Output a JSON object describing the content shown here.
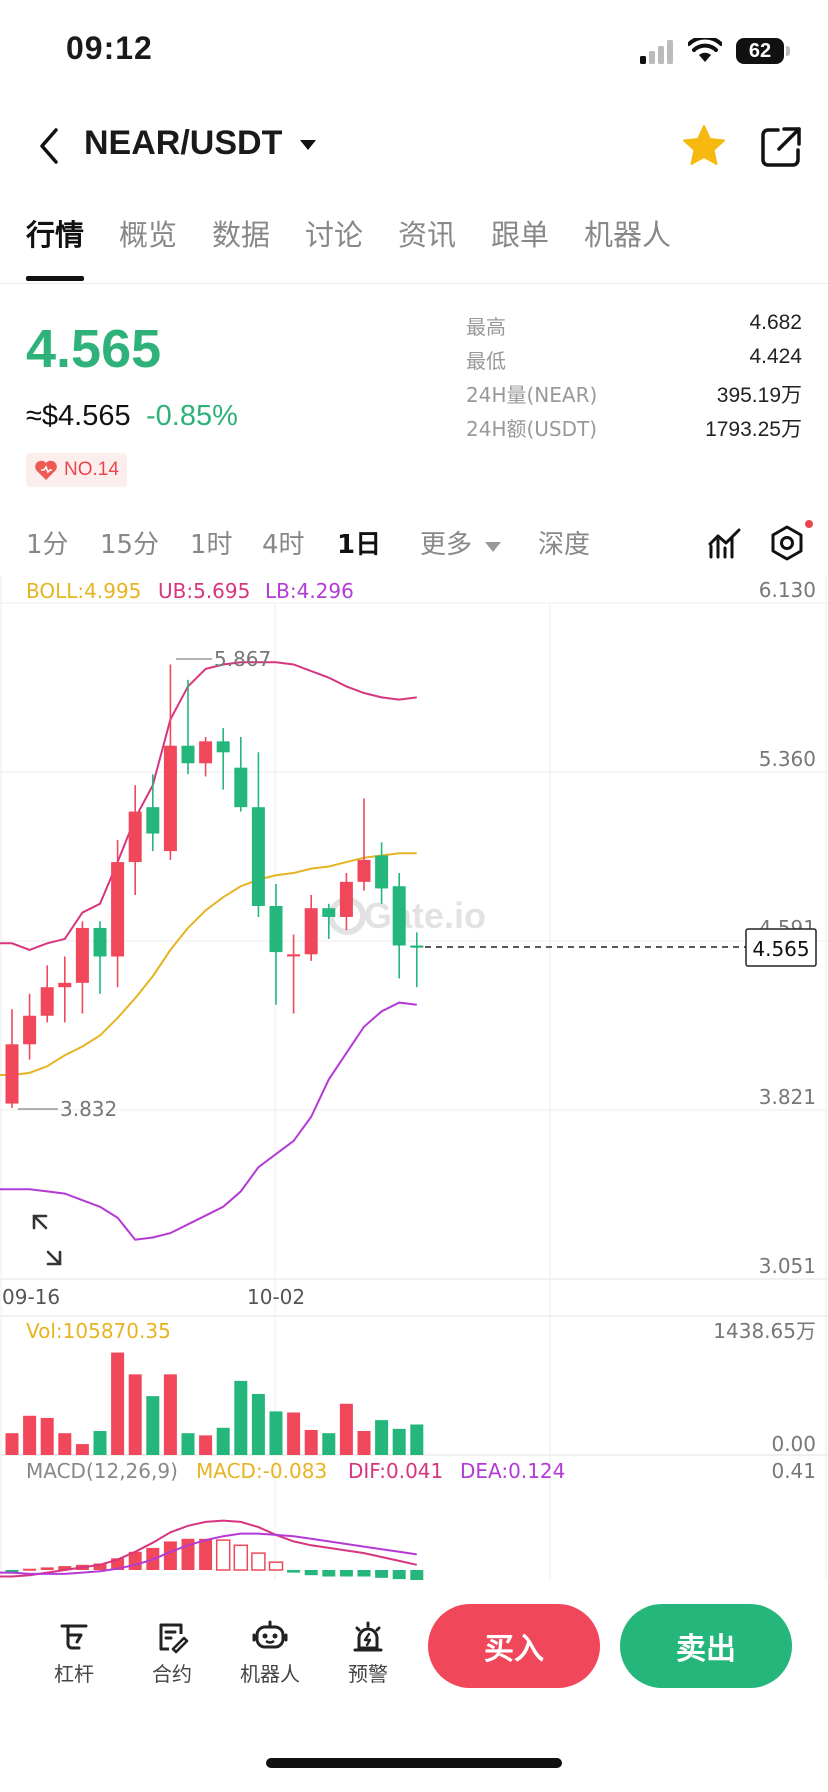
{
  "status_bar": {
    "time": "09:12",
    "battery": "62"
  },
  "header": {
    "pair": "NEAR/USDT"
  },
  "tabs": [
    "行情",
    "概览",
    "数据",
    "讨论",
    "资讯",
    "跟单",
    "机器人"
  ],
  "price": {
    "last": "4.565",
    "usd": "≈$4.565",
    "change": "-0.85%",
    "rank": "NO.14"
  },
  "stats": [
    {
      "label": "最高",
      "value": "4.682"
    },
    {
      "label": "最低",
      "value": "4.424"
    },
    {
      "label": "24H量(NEAR)",
      "value": "395.19万"
    },
    {
      "label": "24H额(USDT)",
      "value": "1793.25万"
    }
  ],
  "intervals": [
    "1分",
    "15分",
    "1时",
    "4时",
    "1日",
    "更多",
    "深度"
  ],
  "colors": {
    "up": "#f0485a",
    "down": "#25b67b",
    "boll_mid": "#e6b422",
    "boll_up": "#d6357f",
    "boll_low": "#b43ad6"
  },
  "chart_data": {
    "type": "candlestick",
    "watermark": "Gate.io",
    "x_ticks": [
      "09-16",
      "10-02"
    ],
    "price_axis": {
      "ticks": [
        "6.130",
        "5.360",
        "4.591",
        "3.821",
        "3.051"
      ],
      "range": [
        3.051,
        6.13
      ]
    },
    "boll_legend": {
      "boll": "BOLL:4.995",
      "ub": "UB:5.695",
      "lb": "LB:4.296"
    },
    "high_label": "5.867",
    "low_label": "3.832",
    "current_price": "4.565",
    "candles": [
      {
        "o": 3.85,
        "h": 4.28,
        "l": 3.83,
        "c": 4.12
      },
      {
        "o": 4.12,
        "h": 4.35,
        "l": 4.05,
        "c": 4.25
      },
      {
        "o": 4.25,
        "h": 4.48,
        "l": 4.22,
        "c": 4.38
      },
      {
        "o": 4.38,
        "h": 4.52,
        "l": 4.22,
        "c": 4.4
      },
      {
        "o": 4.4,
        "h": 4.68,
        "l": 4.26,
        "c": 4.65
      },
      {
        "o": 4.65,
        "h": 4.68,
        "l": 4.35,
        "c": 4.52
      },
      {
        "o": 4.52,
        "h": 5.05,
        "l": 4.38,
        "c": 4.95
      },
      {
        "o": 4.95,
        "h": 5.3,
        "l": 4.8,
        "c": 5.18
      },
      {
        "o": 5.2,
        "h": 5.35,
        "l": 5.0,
        "c": 5.08
      },
      {
        "o": 5.0,
        "h": 5.85,
        "l": 4.96,
        "c": 5.48
      },
      {
        "o": 5.48,
        "h": 5.78,
        "l": 5.35,
        "c": 5.4
      },
      {
        "o": 5.4,
        "h": 5.52,
        "l": 5.34,
        "c": 5.5
      },
      {
        "o": 5.5,
        "h": 5.56,
        "l": 5.28,
        "c": 5.45
      },
      {
        "o": 5.38,
        "h": 5.52,
        "l": 5.18,
        "c": 5.2
      },
      {
        "o": 5.2,
        "h": 5.45,
        "l": 4.7,
        "c": 4.75
      },
      {
        "o": 4.75,
        "h": 4.85,
        "l": 4.3,
        "c": 4.54
      },
      {
        "o": 4.52,
        "h": 4.62,
        "l": 4.26,
        "c": 4.53
      },
      {
        "o": 4.53,
        "h": 4.8,
        "l": 4.5,
        "c": 4.74
      },
      {
        "o": 4.74,
        "h": 4.76,
        "l": 4.6,
        "c": 4.7
      },
      {
        "o": 4.7,
        "h": 4.9,
        "l": 4.64,
        "c": 4.86
      },
      {
        "o": 4.86,
        "h": 5.24,
        "l": 4.82,
        "c": 4.96
      },
      {
        "o": 4.98,
        "h": 5.04,
        "l": 4.76,
        "c": 4.83
      },
      {
        "o": 4.84,
        "h": 4.9,
        "l": 4.42,
        "c": 4.57
      },
      {
        "o": 4.57,
        "h": 4.63,
        "l": 4.38,
        "c": 4.56
      }
    ],
    "boll_upper": [
      4.58,
      4.55,
      4.58,
      4.6,
      4.72,
      4.76,
      4.95,
      5.15,
      5.3,
      5.6,
      5.75,
      5.83,
      5.85,
      5.86,
      5.86,
      5.86,
      5.85,
      5.82,
      5.79,
      5.75,
      5.72,
      5.7,
      5.69,
      5.7
    ],
    "boll_mid": [
      3.98,
      3.99,
      4.02,
      4.07,
      4.11,
      4.16,
      4.24,
      4.33,
      4.43,
      4.55,
      4.65,
      4.73,
      4.79,
      4.84,
      4.87,
      4.89,
      4.9,
      4.92,
      4.93,
      4.95,
      4.97,
      4.98,
      4.99,
      4.99
    ],
    "boll_lower": [
      3.46,
      3.46,
      3.45,
      3.44,
      3.41,
      3.38,
      3.33,
      3.23,
      3.24,
      3.26,
      3.3,
      3.34,
      3.38,
      3.45,
      3.56,
      3.62,
      3.68,
      3.79,
      3.96,
      4.08,
      4.2,
      4.27,
      4.31,
      4.3
    ],
    "volume": {
      "label": "Vol:105870.35",
      "axis_top": "1438.65万",
      "axis_bottom": "0.00",
      "values": [
        20,
        36,
        34,
        20,
        10,
        22,
        94,
        74,
        54,
        74,
        20,
        18,
        25,
        68,
        56,
        40,
        39,
        23,
        20,
        47,
        22,
        32,
        24,
        28
      ]
    },
    "macd": {
      "label": "MACD(12,26,9)",
      "macd_label": "MACD:-0.083",
      "dif_label": "DIF:0.041",
      "dea_label": "DEA:0.124",
      "axis_top": "0.41",
      "hist": [
        -0.02,
        0.01,
        0.02,
        0.03,
        0.04,
        0.05,
        0.09,
        0.14,
        0.17,
        0.22,
        0.24,
        0.24,
        0.23,
        0.19,
        0.13,
        0.06,
        -0.02,
        -0.04,
        -0.05,
        -0.05,
        -0.05,
        -0.06,
        -0.07,
        -0.08
      ],
      "dif": [
        -0.05,
        -0.04,
        -0.02,
        0.0,
        0.02,
        0.04,
        0.08,
        0.14,
        0.21,
        0.29,
        0.34,
        0.37,
        0.38,
        0.37,
        0.33,
        0.27,
        0.22,
        0.19,
        0.17,
        0.15,
        0.13,
        0.1,
        0.07,
        0.04
      ],
      "dea": [
        -0.02,
        -0.03,
        -0.03,
        -0.03,
        -0.02,
        -0.01,
        0.01,
        0.04,
        0.08,
        0.14,
        0.19,
        0.23,
        0.26,
        0.28,
        0.28,
        0.27,
        0.26,
        0.24,
        0.22,
        0.2,
        0.18,
        0.16,
        0.14,
        0.12
      ]
    }
  },
  "bottom_tools": [
    {
      "label": "杠杆",
      "icon": "lever-icon"
    },
    {
      "label": "合约",
      "icon": "contract-icon"
    },
    {
      "label": "机器人",
      "icon": "robot-icon"
    },
    {
      "label": "预警",
      "icon": "alert-icon"
    }
  ],
  "actions": {
    "buy": "买入",
    "sell": "卖出"
  }
}
